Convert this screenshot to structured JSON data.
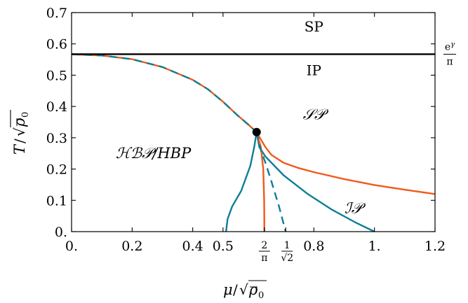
{
  "chart_data": {
    "type": "line",
    "xlabel": "μ/√ρ̄₀",
    "ylabel": "T/√ρ̄₀",
    "xlim": [
      0,
      1.2
    ],
    "ylim": [
      0,
      0.7
    ],
    "x_ticks": [
      {
        "value": 0,
        "label": "0."
      },
      {
        "value": 0.2,
        "label": "0.2"
      },
      {
        "value": 0.4,
        "label": "0.4"
      },
      {
        "value": 0.5,
        "label": "0.5"
      },
      {
        "value": 0.8,
        "label": "0.8"
      },
      {
        "value": 1.0,
        "label": "1."
      },
      {
        "value": 1.2,
        "label": "1.2"
      }
    ],
    "x_special_ticks": [
      {
        "value": 0.6366,
        "num": "2",
        "den": "π"
      },
      {
        "value": 0.7071,
        "num": "1",
        "den": "√2"
      }
    ],
    "y_ticks": [
      {
        "value": 0,
        "label": "0."
      },
      {
        "value": 0.1,
        "label": "0.1"
      },
      {
        "value": 0.2,
        "label": "0.2"
      },
      {
        "value": 0.3,
        "label": "0.3"
      },
      {
        "value": 0.4,
        "label": "0.4"
      },
      {
        "value": 0.5,
        "label": "0.5"
      },
      {
        "value": 0.6,
        "label": "0.6"
      },
      {
        "value": 0.7,
        "label": "0.7"
      }
    ],
    "hline": {
      "y": 0.567,
      "label_num": "e^γ",
      "label_den": "π",
      "color": "#000000"
    },
    "critical_point": {
      "x": 0.611,
      "y": 0.318
    },
    "region_labels": [
      {
        "text": "SP",
        "x": 0.8,
        "y": 0.655,
        "style": "roman"
      },
      {
        "text": "IP",
        "x": 0.8,
        "y": 0.515,
        "style": "roman"
      },
      {
        "text": "𝒮𝒫",
        "x": 0.8,
        "y": 0.375,
        "style": "cal"
      },
      {
        "text": "ℋℬ𝒫/HBP",
        "x": 0.27,
        "y": 0.25,
        "style": "cal"
      },
      {
        "text": "ℐ𝒫",
        "x": 0.93,
        "y": 0.075,
        "style": "cal"
      }
    ],
    "series": [
      {
        "color": "#f05a1a",
        "dash": false,
        "points": [
          [
            0,
            0.567
          ],
          [
            0.1,
            0.563
          ],
          [
            0.2,
            0.551
          ],
          [
            0.3,
            0.526
          ],
          [
            0.4,
            0.485
          ],
          [
            0.45,
            0.455
          ],
          [
            0.5,
            0.415
          ],
          [
            0.55,
            0.37
          ],
          [
            0.58,
            0.345
          ],
          [
            0.611,
            0.318
          ]
        ]
      },
      {
        "color": "#0f7e96",
        "dash": true,
        "points": [
          [
            0,
            0.567
          ],
          [
            0.1,
            0.563
          ],
          [
            0.2,
            0.551
          ],
          [
            0.3,
            0.526
          ],
          [
            0.4,
            0.485
          ],
          [
            0.45,
            0.455
          ],
          [
            0.5,
            0.415
          ],
          [
            0.55,
            0.37
          ],
          [
            0.58,
            0.345
          ],
          [
            0.611,
            0.318
          ]
        ]
      },
      {
        "color": "#f05a1a",
        "dash": false,
        "points": [
          [
            0.611,
            0.318
          ],
          [
            0.64,
            0.27
          ],
          [
            0.66,
            0.245
          ],
          [
            0.7,
            0.22
          ],
          [
            0.75,
            0.203
          ],
          [
            0.8,
            0.19
          ],
          [
            0.9,
            0.168
          ],
          [
            1.0,
            0.149
          ],
          [
            1.1,
            0.134
          ],
          [
            1.2,
            0.12
          ]
        ]
      },
      {
        "color": "#0f7e96",
        "dash": false,
        "points": [
          [
            0.611,
            0.318
          ],
          [
            0.62,
            0.27
          ],
          [
            0.64,
            0.24
          ],
          [
            0.7,
            0.18
          ],
          [
            0.78,
            0.12
          ],
          [
            0.86,
            0.07
          ],
          [
            0.94,
            0.028
          ],
          [
            1.0,
            0.0
          ]
        ]
      },
      {
        "color": "#0f7e96",
        "dash": false,
        "points": [
          [
            0.611,
            0.318
          ],
          [
            0.603,
            0.27
          ],
          [
            0.59,
            0.21
          ],
          [
            0.56,
            0.13
          ],
          [
            0.53,
            0.08
          ],
          [
            0.515,
            0.04
          ],
          [
            0.51,
            0.0
          ]
        ]
      },
      {
        "color": "#f05a1a",
        "dash": false,
        "points": [
          [
            0.611,
            0.318
          ],
          [
            0.625,
            0.27
          ],
          [
            0.633,
            0.2
          ],
          [
            0.636,
            0.1
          ],
          [
            0.6366,
            0.0
          ]
        ]
      },
      {
        "color": "#0f7e96",
        "dash": true,
        "points": [
          [
            0.611,
            0.318
          ],
          [
            0.625,
            0.26
          ],
          [
            0.64,
            0.22
          ],
          [
            0.66,
            0.16
          ],
          [
            0.685,
            0.08
          ],
          [
            0.7071,
            0.0
          ]
        ]
      }
    ]
  }
}
